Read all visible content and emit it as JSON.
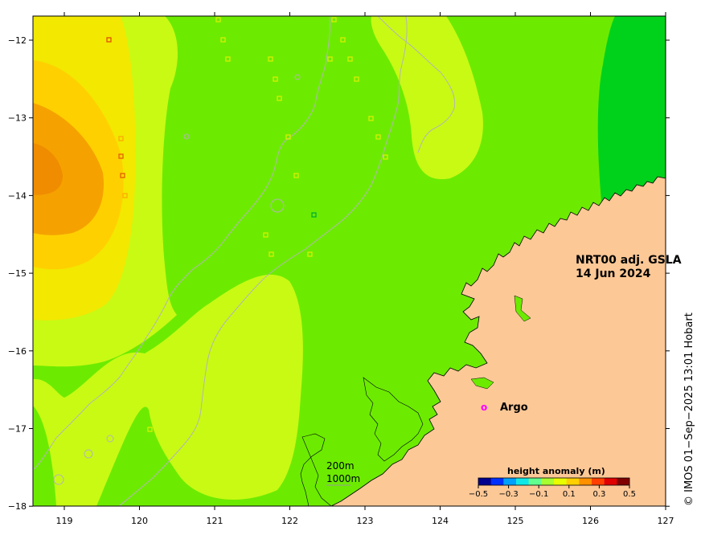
{
  "title": {
    "line1": "NRT00 adj. GSLA",
    "line2": "14 Jun 2024"
  },
  "legend": {
    "argo_marker": "o",
    "argo_label": "Argo"
  },
  "depth_labels": {
    "shallow": "200m",
    "deep": "1000m"
  },
  "colorbar": {
    "title": "height anomaly (m)",
    "ticks": [
      "−0.5",
      "−0.3",
      "−0.1",
      "0.1",
      "0.3",
      "0.5"
    ],
    "colors": [
      "#00008f",
      "#0030ff",
      "#00a0ff",
      "#10e8e8",
      "#60ff90",
      "#a8ff30",
      "#e8ff00",
      "#ffd000",
      "#ff9000",
      "#ff4000",
      "#e00000",
      "#800000"
    ]
  },
  "credit": "© IMOS 01−Sep−2025 13:01 Hobart",
  "axes": {
    "x_ticks": [
      "119",
      "120",
      "121",
      "122",
      "123",
      "124",
      "125",
      "126",
      "127"
    ],
    "y_ticks": [
      "−12",
      "−13",
      "−14",
      "−15",
      "−16",
      "−17",
      "−18"
    ],
    "lon_range": [
      118.6,
      127
    ],
    "lat_range": [
      -18,
      -11.7
    ]
  },
  "colors": {
    "land": "#fcc896",
    "anomaly_main": "#6ceb00",
    "anomaly_low": "#00d21c",
    "anomaly_mid": "#c8fa14",
    "anomaly_high": "#f2e800",
    "anomaly_higher": "#ffd000",
    "anomaly_peak": "#f5a200",
    "anomaly_max": "#f08c00",
    "argo": "#ff00ff"
  }
}
